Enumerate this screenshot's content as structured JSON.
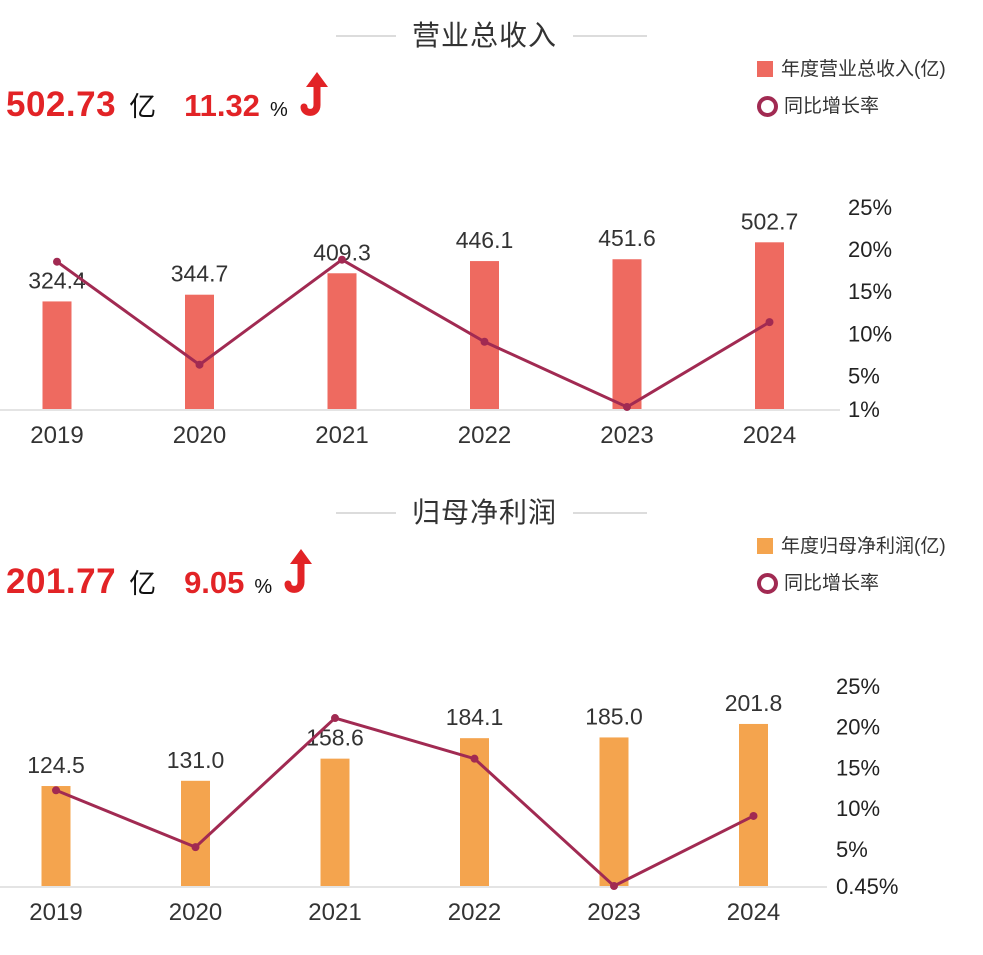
{
  "page": {
    "background": "#ffffff"
  },
  "kpi_color": "#e22326",
  "chart_data": [
    {
      "type": "bar",
      "title": "营业总收入",
      "categories": [
        "2019",
        "2020",
        "2021",
        "2022",
        "2023",
        "2024"
      ],
      "series": [
        {
          "name": "年度营业总收入(亿)",
          "kind": "bar",
          "color": "#ee6a60",
          "values": [
            "324.4",
            "344.7",
            "409.3",
            "446.1",
            "451.6",
            "502.7"
          ]
        },
        {
          "name": "同比增长率",
          "kind": "line",
          "color": "#a12a52",
          "unit": "%",
          "values": [
            18.5,
            6.26,
            18.74,
            8.99,
            1.24,
            11.32
          ]
        }
      ],
      "right_axis": {
        "ticks": [
          "25%",
          "20%",
          "15%",
          "10%",
          "5%",
          "1%"
        ],
        "values": [
          25,
          20,
          15,
          10,
          5,
          1
        ],
        "range": [
          1,
          25
        ]
      },
      "legend_position": "top-right",
      "grid": false,
      "kpi": {
        "value": "502.73",
        "unit": "亿",
        "growth": "11.32",
        "growth_unit": "%",
        "trend": "up"
      }
    },
    {
      "type": "bar",
      "title": "归母净利润",
      "categories": [
        "2019",
        "2020",
        "2021",
        "2022",
        "2023",
        "2024"
      ],
      "series": [
        {
          "name": "年度归母净利润(亿)",
          "kind": "bar",
          "color": "#f4a44e",
          "values": [
            "124.5",
            "131.0",
            "158.6",
            "184.1",
            "185.0",
            "201.8"
          ]
        },
        {
          "name": "同比增长率",
          "kind": "line",
          "color": "#a12a52",
          "unit": "%",
          "values": [
            12.2,
            5.22,
            21.07,
            16.08,
            0.45,
            9.05
          ]
        }
      ],
      "right_axis": {
        "ticks": [
          "25%",
          "20%",
          "15%",
          "10%",
          "5%",
          "0.45%"
        ],
        "values": [
          25,
          20,
          15,
          10,
          5,
          0.45
        ],
        "range": [
          0.45,
          25
        ]
      },
      "legend_position": "top-right",
      "grid": false,
      "kpi": {
        "value": "201.77",
        "unit": "亿",
        "growth": "9.05",
        "growth_unit": "%",
        "trend": "up"
      }
    }
  ]
}
